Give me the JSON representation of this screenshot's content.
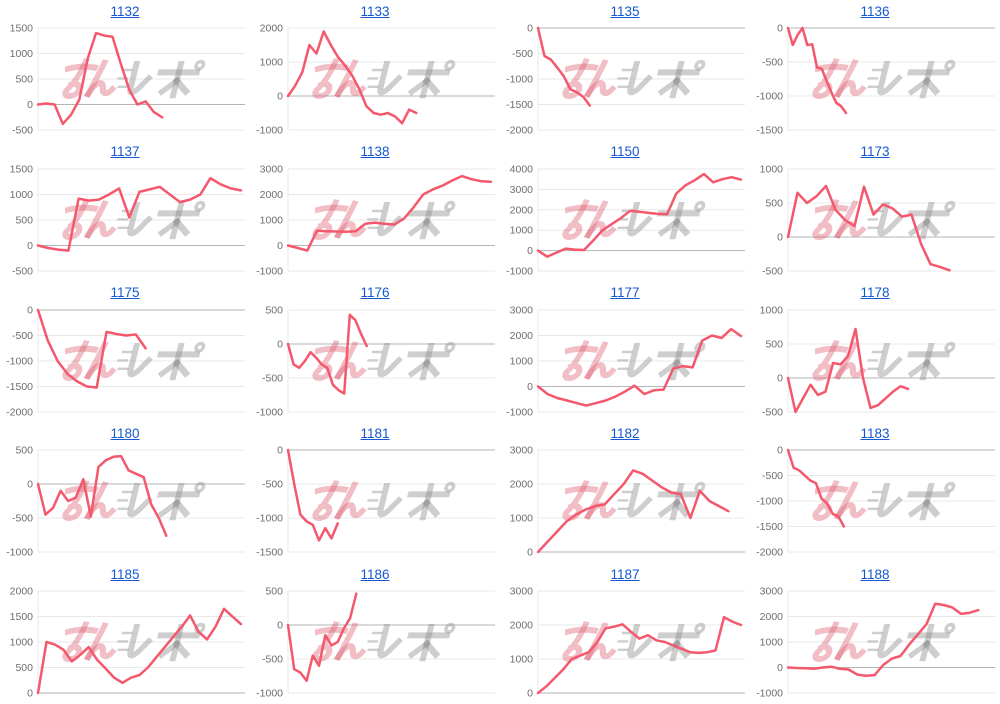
{
  "watermark": {
    "text_pink": "みん",
    "text_gray": "レポ",
    "color_pink": "#d9546a",
    "color_gray": "#8a8a8a",
    "opacity_pink": 0.38,
    "opacity_gray": 0.42
  },
  "style": {
    "line_color": "#f4586d",
    "title_color": "#1558d0",
    "grid_color": "#e8e8e8",
    "zero_line_color": "#b5b5b5",
    "axis_label_color": "#6e6e6e",
    "background": "#ffffff"
  },
  "chart_data": [
    {
      "type": "line",
      "title": "1132",
      "ylim": [
        -500,
        1500
      ],
      "yticks": [
        1500,
        1000,
        500,
        0,
        -500
      ],
      "extent": 0.6,
      "values": [
        0,
        20,
        0,
        -380,
        -200,
        100,
        900,
        1400,
        1350,
        1330,
        800,
        300,
        0,
        60,
        -150,
        -250
      ]
    },
    {
      "type": "line",
      "title": "1133",
      "ylim": [
        -1000,
        2000
      ],
      "yticks": [
        2000,
        1000,
        0,
        -1000
      ],
      "extent": 0.62,
      "values": [
        0,
        300,
        700,
        1500,
        1250,
        1900,
        1500,
        1150,
        900,
        600,
        200,
        -300,
        -500,
        -550,
        -500,
        -600,
        -800,
        -400,
        -500
      ]
    },
    {
      "type": "line",
      "title": "1135",
      "ylim": [
        -2000,
        0
      ],
      "yticks": [
        0,
        -500,
        -1000,
        -1500,
        -2000
      ],
      "extent": 0.25,
      "values": [
        0,
        -550,
        -620,
        -780,
        -950,
        -1200,
        -1260,
        -1350,
        -1520
      ]
    },
    {
      "type": "line",
      "title": "1136",
      "ylim": [
        -1500,
        0
      ],
      "yticks": [
        0,
        -500,
        -1000,
        -1500
      ],
      "extent": 0.28,
      "values": [
        0,
        -250,
        -100,
        0,
        -250,
        -240,
        -580,
        -600,
        -780,
        -950,
        -1100,
        -1150,
        -1250
      ]
    },
    {
      "type": "line",
      "title": "1137",
      "ylim": [
        -500,
        1500
      ],
      "yticks": [
        1500,
        1000,
        500,
        0,
        -500
      ],
      "extent": 0.98,
      "values": [
        0,
        -50,
        -80,
        -100,
        920,
        880,
        900,
        1000,
        1120,
        550,
        1050,
        1100,
        1150,
        1000,
        850,
        900,
        1000,
        1320,
        1200,
        1120,
        1080
      ]
    },
    {
      "type": "line",
      "title": "1138",
      "ylim": [
        -1000,
        3000
      ],
      "yticks": [
        3000,
        2000,
        1000,
        0,
        -1000
      ],
      "extent": 0.98,
      "values": [
        0,
        -100,
        -200,
        580,
        560,
        550,
        540,
        560,
        850,
        900,
        850,
        820,
        1050,
        1500,
        2000,
        2200,
        2350,
        2550,
        2720,
        2600,
        2520,
        2500
      ]
    },
    {
      "type": "line",
      "title": "1150",
      "ylim": [
        -1000,
        4000
      ],
      "yticks": [
        4000,
        3000,
        2000,
        1000,
        0,
        -1000
      ],
      "extent": 0.98,
      "values": [
        0,
        -300,
        -100,
        100,
        50,
        30,
        500,
        1000,
        1300,
        1600,
        1950,
        1900,
        1850,
        1800,
        1780,
        2800,
        3200,
        3450,
        3750,
        3350,
        3500,
        3600,
        3480
      ]
    },
    {
      "type": "line",
      "title": "1173",
      "ylim": [
        -500,
        1000
      ],
      "yticks": [
        1000,
        500,
        0,
        -500
      ],
      "extent": 0.78,
      "values": [
        0,
        650,
        500,
        600,
        750,
        400,
        250,
        160,
        740,
        330,
        480,
        420,
        300,
        330,
        -100,
        -400,
        -440,
        -490
      ]
    },
    {
      "type": "line",
      "title": "1175",
      "ylim": [
        -2000,
        0
      ],
      "yticks": [
        0,
        -500,
        -1000,
        -1500,
        -2000
      ],
      "extent": 0.52,
      "values": [
        0,
        -600,
        -1000,
        -1250,
        -1400,
        -1500,
        -1520,
        -430,
        -470,
        -500,
        -480,
        -750
      ]
    },
    {
      "type": "line",
      "title": "1176",
      "ylim": [
        -1000,
        500
      ],
      "yticks": [
        500,
        0,
        -500,
        -1000
      ],
      "extent": 0.38,
      "values": [
        0,
        -300,
        -350,
        -250,
        -120,
        -200,
        -300,
        -350,
        -600,
        -680,
        -730,
        430,
        350,
        150,
        -30
      ]
    },
    {
      "type": "line",
      "title": "1177",
      "ylim": [
        -1000,
        3000
      ],
      "yticks": [
        3000,
        2000,
        1000,
        0,
        -1000
      ],
      "extent": 0.98,
      "values": [
        0,
        -300,
        -450,
        -550,
        -650,
        -750,
        -650,
        -550,
        -400,
        -200,
        30,
        -300,
        -150,
        -120,
        700,
        800,
        750,
        1800,
        2000,
        1900,
        2250,
        1980
      ]
    },
    {
      "type": "line",
      "title": "1178",
      "ylim": [
        -500,
        1000
      ],
      "yticks": [
        1000,
        500,
        0,
        -500
      ],
      "extent": 0.58,
      "values": [
        0,
        -500,
        -300,
        -100,
        -250,
        -200,
        220,
        200,
        320,
        720,
        0,
        -440,
        -400,
        -300,
        -200,
        -120,
        -160
      ]
    },
    {
      "type": "line",
      "title": "1180",
      "ylim": [
        -1000,
        500
      ],
      "yticks": [
        500,
        0,
        -500,
        -1000
      ],
      "extent": 0.62,
      "values": [
        0,
        -450,
        -350,
        -100,
        -250,
        -200,
        70,
        -480,
        250,
        350,
        400,
        410,
        200,
        150,
        100,
        -300,
        -500,
        -760
      ]
    },
    {
      "type": "line",
      "title": "1181",
      "ylim": [
        -1500,
        0
      ],
      "yticks": [
        0,
        -500,
        -1000,
        -1500
      ],
      "extent": 0.24,
      "values": [
        0,
        -500,
        -950,
        -1050,
        -1100,
        -1330,
        -1150,
        -1300,
        -1080
      ]
    },
    {
      "type": "line",
      "title": "1182",
      "ylim": [
        0,
        3000
      ],
      "yticks": [
        3000,
        2000,
        1000,
        0
      ],
      "extent": 0.92,
      "values": [
        0,
        300,
        600,
        900,
        1100,
        1250,
        1350,
        1400,
        1700,
        2000,
        2400,
        2300,
        2100,
        1900,
        1750,
        1700,
        1000,
        1800,
        1500,
        1350,
        1200
      ]
    },
    {
      "type": "line",
      "title": "1183",
      "ylim": [
        -2000,
        0
      ],
      "yticks": [
        0,
        -500,
        -1000,
        -1500,
        -2000
      ],
      "extent": 0.27,
      "values": [
        0,
        -350,
        -400,
        -500,
        -600,
        -650,
        -950,
        -1050,
        -1250,
        -1300,
        -1500
      ]
    },
    {
      "type": "line",
      "title": "1185",
      "ylim": [
        0,
        2000
      ],
      "yticks": [
        2000,
        1500,
        1000,
        500,
        0
      ],
      "extent": 0.98,
      "values": [
        0,
        1000,
        950,
        850,
        620,
        750,
        900,
        650,
        480,
        300,
        200,
        300,
        350,
        500,
        700,
        900,
        1100,
        1300,
        1520,
        1200,
        1050,
        1300,
        1650,
        1500,
        1350
      ]
    },
    {
      "type": "line",
      "title": "1186",
      "ylim": [
        -1000,
        500
      ],
      "yticks": [
        500,
        0,
        -500,
        -1000
      ],
      "extent": 0.33,
      "values": [
        0,
        -650,
        -700,
        -820,
        -450,
        -600,
        -150,
        -300,
        -250,
        -50,
        100,
        460
      ]
    },
    {
      "type": "line",
      "title": "1187",
      "ylim": [
        0,
        3000
      ],
      "yticks": [
        3000,
        2000,
        1000,
        0
      ],
      "extent": 0.98,
      "values": [
        0,
        200,
        450,
        700,
        1000,
        1100,
        1200,
        1500,
        1900,
        1950,
        2020,
        1800,
        1600,
        1700,
        1550,
        1500,
        1400,
        1300,
        1200,
        1180,
        1200,
        1250,
        2230,
        2100,
        2000
      ]
    },
    {
      "type": "line",
      "title": "1188",
      "ylim": [
        -1000,
        3000
      ],
      "yticks": [
        3000,
        2000,
        1000,
        0,
        -1000
      ],
      "extent": 0.92,
      "values": [
        0,
        -20,
        -30,
        -50,
        0,
        30,
        -50,
        -80,
        -280,
        -320,
        -300,
        100,
        350,
        450,
        900,
        1300,
        1700,
        2500,
        2450,
        2350,
        2100,
        2150,
        2250
      ]
    }
  ]
}
